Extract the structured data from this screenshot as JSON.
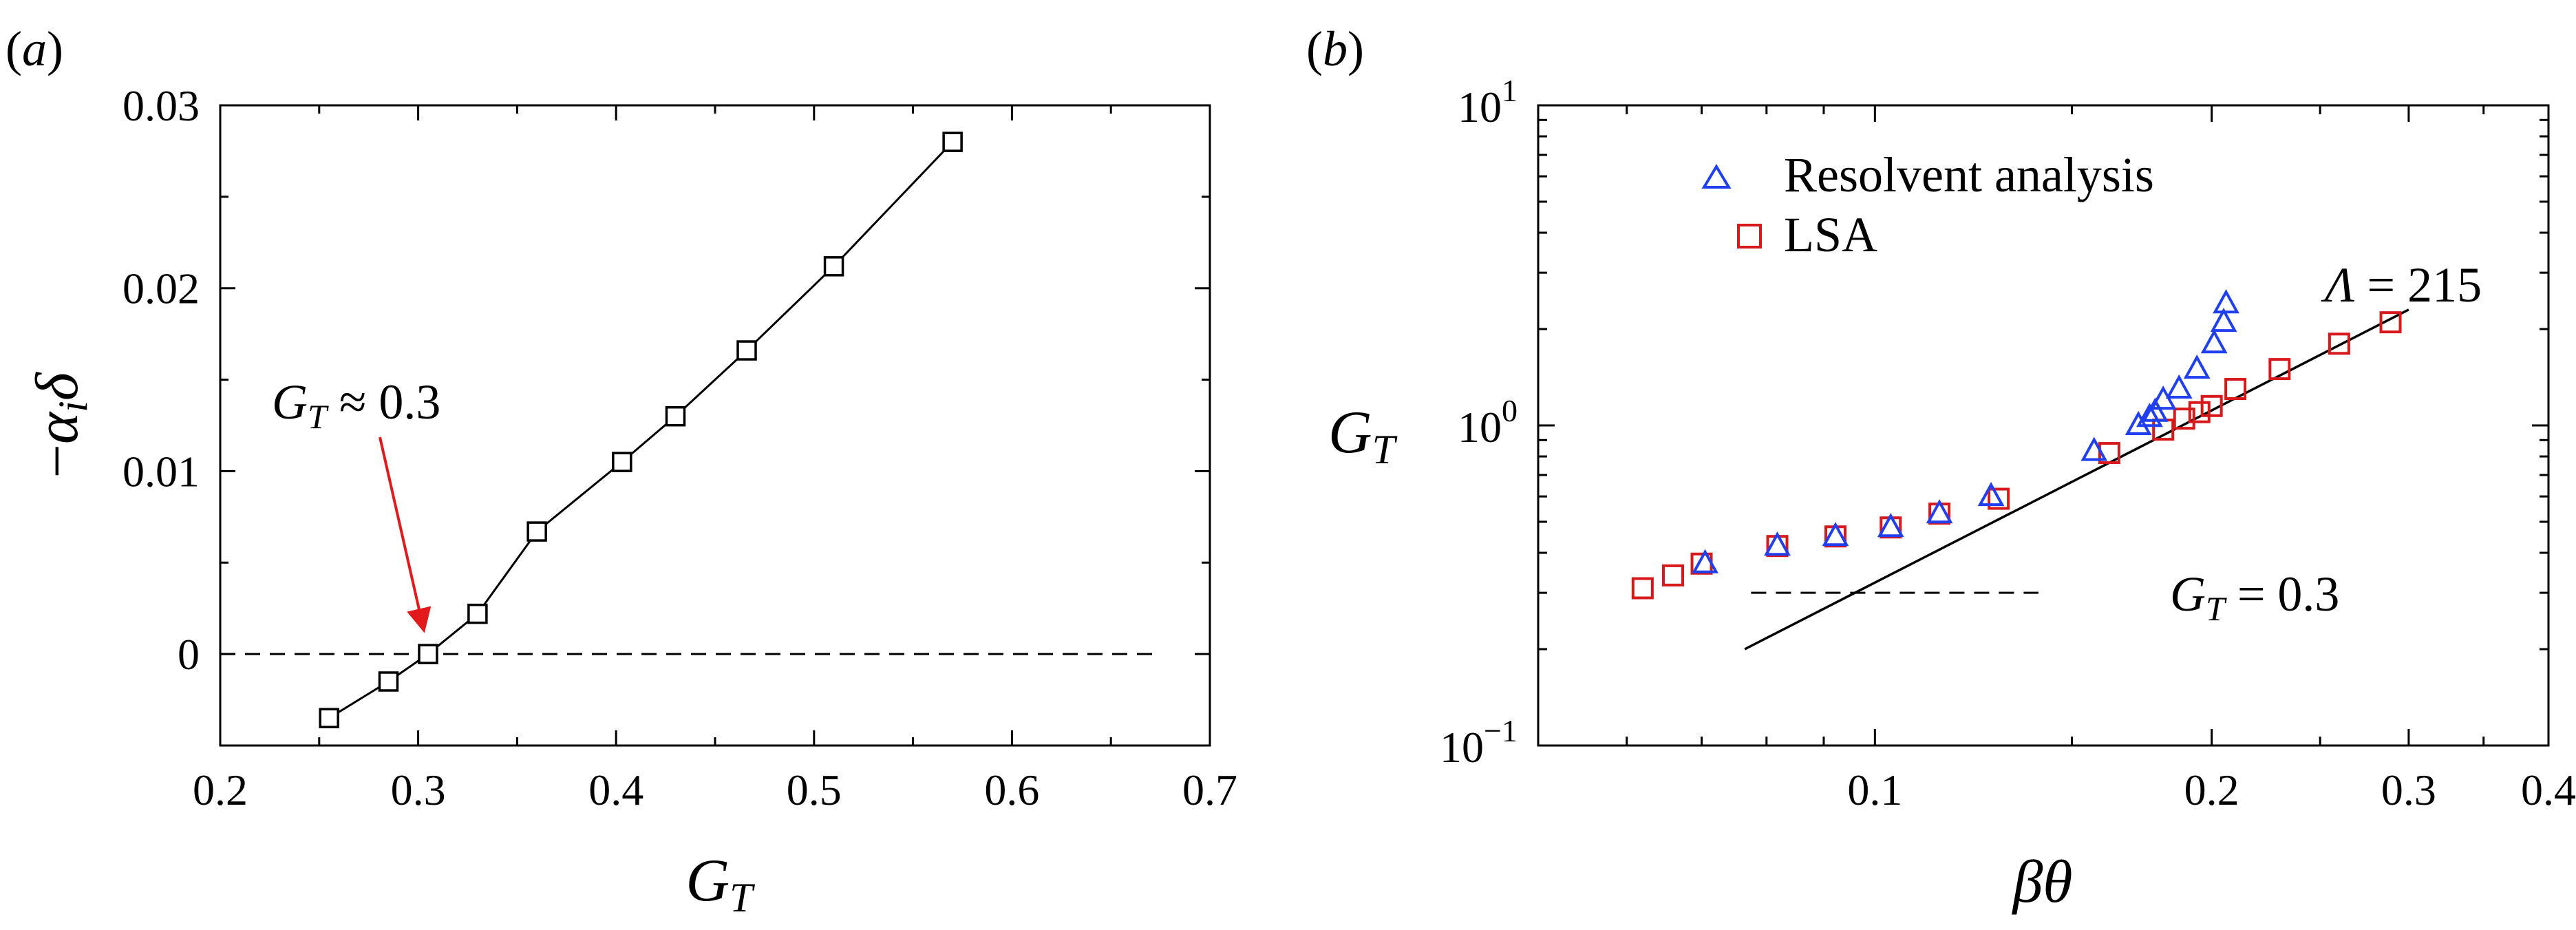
{
  "chart_data": [
    {
      "panel": "(a)",
      "type": "line",
      "xlabel": "G_T",
      "ylabel": "−α_i δ",
      "xlim": [
        0.2,
        0.7
      ],
      "ylim": [
        -0.005,
        0.03
      ],
      "xticks": [
        "0.2",
        "0.3",
        "0.4",
        "0.5",
        "0.6",
        "0.7"
      ],
      "yticks": [
        "0",
        "0.01",
        "0.02",
        "0.03"
      ],
      "series": [
        {
          "marker": "square",
          "color": "#000000",
          "x": [
            0.255,
            0.285,
            0.305,
            0.33,
            0.36,
            0.403,
            0.43,
            0.466,
            0.51,
            0.57
          ],
          "y": [
            -0.0035,
            -0.0015,
            0.0,
            0.0022,
            0.0067,
            0.0105,
            0.013,
            0.0166,
            0.0212,
            0.028
          ]
        }
      ],
      "reference_line": {
        "y": 0,
        "style": "dashed",
        "color": "#000000"
      },
      "annotation": {
        "text": "G_T ≈ 0.3",
        "arrow_to": [
          0.305,
          0.0
        ],
        "arrow_color": "#e31a1c"
      }
    },
    {
      "panel": "(b)",
      "type": "scatter",
      "xscale": "log",
      "yscale": "log",
      "xlabel": "βθ",
      "ylabel": "G_T",
      "xlim": [
        0.05,
        0.4
      ],
      "ylim": [
        0.1,
        10
      ],
      "xticks": [
        "0.1",
        "0.2",
        "0.3",
        "0.4"
      ],
      "yticks": [
        "10^1",
        "10^0",
        "10^-1"
      ],
      "legend": {
        "position": "top-left"
      },
      "series": [
        {
          "name": "Resolvent analysis",
          "marker": "triangle",
          "color": "#1f3ff0",
          "x": [
            0.0705,
            0.0818,
            0.0922,
            0.1033,
            0.1142,
            0.127,
            0.157,
            0.172,
            0.176,
            0.178,
            0.181,
            0.187,
            0.194,
            0.201,
            0.205,
            0.206
          ],
          "y": [
            0.37,
            0.42,
            0.45,
            0.48,
            0.53,
            0.6,
            0.83,
            1.0,
            1.06,
            1.1,
            1.2,
            1.3,
            1.5,
            1.8,
            2.1,
            2.4
          ]
        },
        {
          "name": "LSA",
          "marker": "square",
          "color": "#d7191c",
          "x": [
            0.062,
            0.066,
            0.07,
            0.0818,
            0.0922,
            0.1033,
            0.1142,
            0.129,
            0.162,
            0.181,
            0.189,
            0.195,
            0.2,
            0.21,
            0.23,
            0.26,
            0.289
          ],
          "y": [
            0.31,
            0.34,
            0.37,
            0.42,
            0.45,
            0.48,
            0.53,
            0.59,
            0.82,
            0.97,
            1.05,
            1.1,
            1.15,
            1.3,
            1.5,
            1.8,
            2.1
          ]
        }
      ],
      "fit_line": {
        "label": "Λ = 215",
        "x": [
          0.0765,
          0.3
        ],
        "y": [
          0.2,
          2.3
        ],
        "color": "#000000"
      },
      "reference_line": {
        "y": 0.3,
        "label": "G_T = 0.3",
        "style": "dashed",
        "color": "#000000"
      }
    }
  ]
}
